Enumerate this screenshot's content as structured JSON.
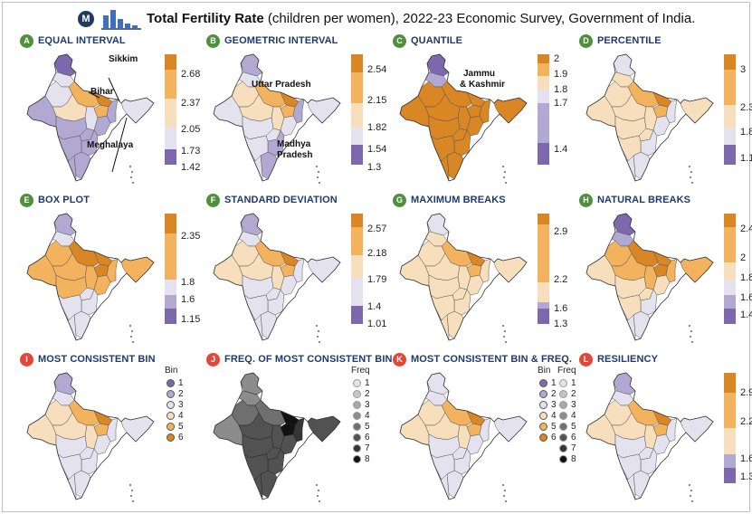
{
  "header": {
    "logo_letter": "M",
    "title_bold": "Total Fertility Rate",
    "title_rest": " (children per women), 2022-23 Economic Survey, Government of India."
  },
  "colors": {
    "c1": "#7d67ad",
    "c2": "#b2a9d2",
    "c3": "#e4e2ef",
    "c4": "#f7dfbd",
    "c5": "#f3b35e",
    "c6": "#d98625",
    "f1": "#e3e3e3",
    "f2": "#c6c6c6",
    "f3": "#a9a9a9",
    "f4": "#8c8c8c",
    "f5": "#6f6f6f",
    "f6": "#525252",
    "f7": "#353535",
    "f8": "#111111"
  },
  "panels": [
    {
      "badge": "A",
      "title": "EQUAL INTERVAL",
      "labels": [
        "2.68",
        "2.37",
        "2.05",
        "1.73",
        "1.42"
      ],
      "scheme": "equal"
    },
    {
      "badge": "B",
      "title": "GEOMETRIC INTERVAL",
      "labels": [
        "2.54",
        "2.15",
        "1.82",
        "1.54",
        "1.3"
      ],
      "scheme": "geom"
    },
    {
      "badge": "C",
      "title": "QUANTILE",
      "labels": [
        "2",
        "1.9",
        "1.8",
        "1.7",
        "1.4"
      ],
      "scheme": "quant"
    },
    {
      "badge": "D",
      "title": "PERCENTILE",
      "labels": [
        "3",
        "2.3",
        "1.8",
        "1.1"
      ],
      "scheme": "perc"
    },
    {
      "badge": "E",
      "title": "BOX PLOT",
      "labels": [
        "2.35",
        "1.8",
        "1.6",
        "1.15"
      ],
      "scheme": "box"
    },
    {
      "badge": "F",
      "title": "STANDARD DEVIATION",
      "labels": [
        "2.57",
        "2.18",
        "1.79",
        "1.4",
        "1.01"
      ],
      "scheme": "std"
    },
    {
      "badge": "G",
      "title": "MAXIMUM BREAKS",
      "labels": [
        "2.9",
        "2.2",
        "1.6",
        "1.3"
      ],
      "scheme": "max"
    },
    {
      "badge": "H",
      "title": "NATURAL BREAKS",
      "labels": [
        "2.4",
        "2",
        "1.8",
        "1.6",
        "1.4"
      ],
      "scheme": "nat"
    },
    {
      "badge": "I",
      "title": "MOST CONSISTENT BIN",
      "legend_title": "Bin",
      "legend": [
        "1",
        "2",
        "3",
        "4",
        "5",
        "6"
      ],
      "scheme": "bin"
    },
    {
      "badge": "J",
      "title": "FREQ. OF MOST CONSISTENT BIN",
      "legend_title": "Freq",
      "legend": [
        "1",
        "2",
        "3",
        "4",
        "5",
        "6",
        "7",
        "8"
      ],
      "scheme": "freq"
    },
    {
      "badge": "K",
      "title": "MOST CONSISTENT BIN & FREQ.",
      "legend_title": "Bin",
      "legend": [
        "1",
        "2",
        "3",
        "4",
        "5",
        "6"
      ],
      "legend2_title": "Freq",
      "legend2": [
        "1",
        "2",
        "3",
        "4",
        "5",
        "6",
        "7",
        "8"
      ],
      "scheme": "binfreq"
    },
    {
      "badge": "L",
      "title": "RESILIENCY",
      "labels": [
        "2.9",
        "2.2",
        "1.6",
        "1.3"
      ],
      "scheme": "res"
    }
  ],
  "annotations": {
    "bihar": "Bihar",
    "sikkim": "Sikkim",
    "meghalaya": "Meghalaya",
    "up": "Uttar Pradesh",
    "mp1": "Madhya",
    "mp2": "Pradesh",
    "jk1": "Jammu",
    "jk2": "& Kashmir"
  }
}
